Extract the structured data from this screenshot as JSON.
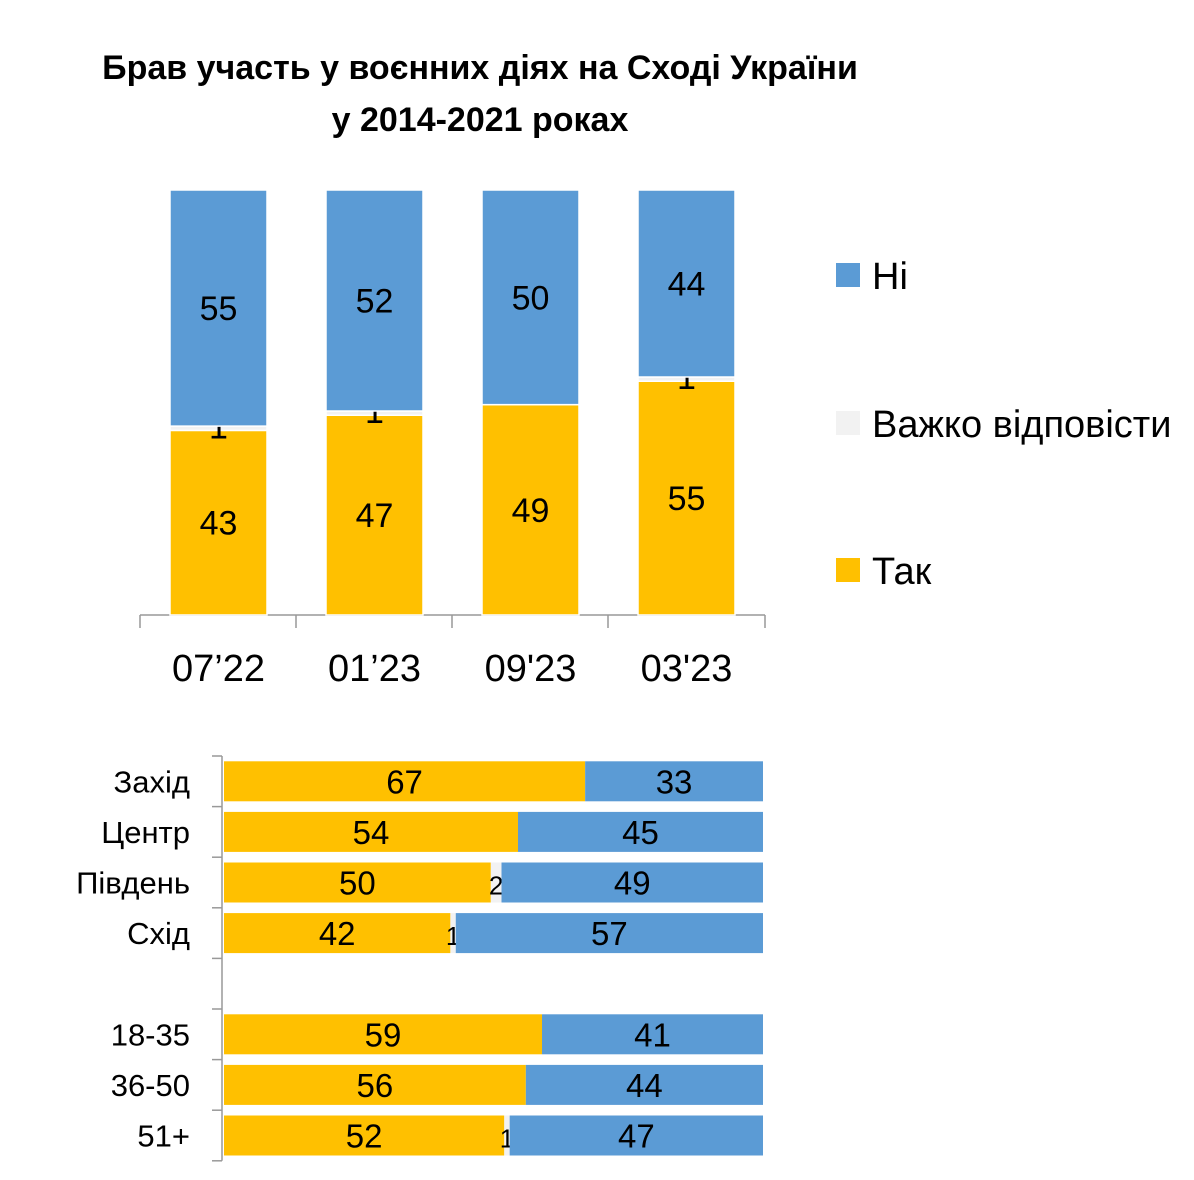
{
  "chart_data": [
    {
      "type": "bar",
      "stacked": true,
      "orientation": "vertical",
      "title": "Брав участь у воєнних діях на Сході України у 2014-2021 роках",
      "title_lines": [
        "Брав участь у воєнних діях на Сході України",
        "у 2014-2021 роках"
      ],
      "categories": [
        "07’22",
        "01’23",
        "09'23",
        "03'23"
      ],
      "series": [
        {
          "name": "Так",
          "color": "#FFC000",
          "values": [
            43,
            47,
            49,
            55
          ]
        },
        {
          "name": "Важко відповісти",
          "color": "#F2F2F2",
          "values": [
            1,
            1,
            null,
            1
          ]
        },
        {
          "name": "Ні",
          "color": "#5B9BD5",
          "values": [
            55,
            52,
            50,
            44
          ]
        }
      ],
      "legend": {
        "placement": "right",
        "order": [
          "Ні",
          "Важко відповісти",
          "Так"
        ]
      },
      "grid": false
    },
    {
      "type": "bar",
      "stacked": true,
      "orientation": "horizontal",
      "categories": [
        "Захід",
        "Центр",
        "Південь",
        "Схід",
        "",
        "18-35",
        "36-50",
        "51+"
      ],
      "series": [
        {
          "name": "Так",
          "color": "#FFC000",
          "values": [
            67,
            54,
            50,
            42,
            null,
            59,
            56,
            52
          ]
        },
        {
          "name": "Важко відповісти",
          "color": "#F2F2F2",
          "values": [
            null,
            null,
            2,
            1,
            null,
            null,
            null,
            1
          ]
        },
        {
          "name": "Ні",
          "color": "#5B9BD5",
          "values": [
            33,
            45,
            49,
            57,
            null,
            41,
            44,
            47
          ]
        }
      ],
      "grid": false
    }
  ]
}
